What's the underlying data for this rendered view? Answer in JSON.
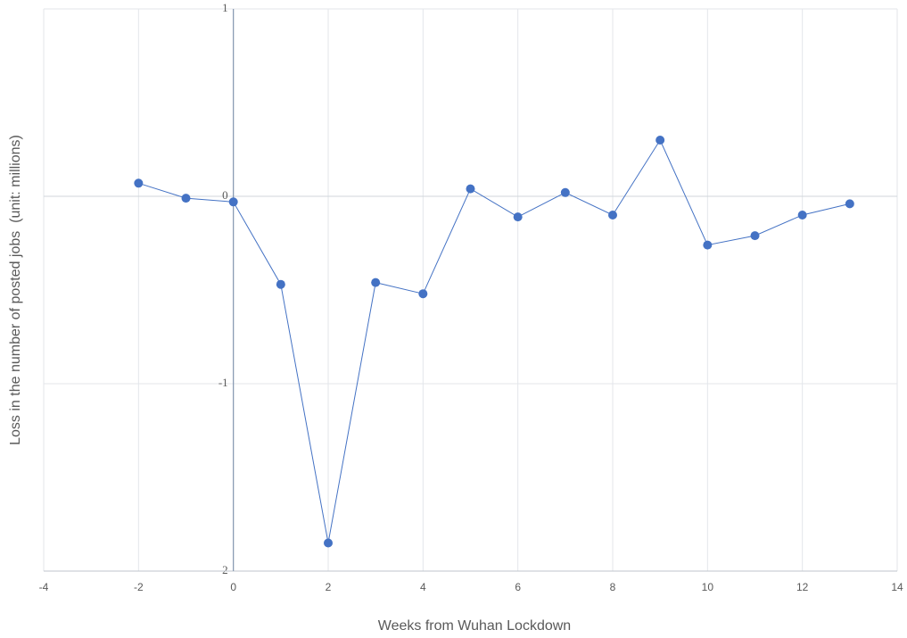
{
  "chart_data": {
    "type": "scatter",
    "x_label": "Weeks from Wuhan Lockdown",
    "y_label": "Loss in the number of posted jobs  (unit: millions)",
    "x": [
      -2,
      -1,
      0,
      1,
      2,
      3,
      4,
      5,
      6,
      7,
      8,
      9,
      10,
      11,
      12,
      13
    ],
    "series": [
      {
        "name": "Loss",
        "color": "#4472c4",
        "values": [
          0.07,
          -0.01,
          -0.03,
          -0.47,
          -1.85,
          -0.46,
          -0.52,
          0.04,
          -0.11,
          0.02,
          -0.1,
          0.3,
          -0.26,
          -0.21,
          -0.1,
          -0.04
        ]
      }
    ],
    "xlim": [
      -4,
      14
    ],
    "xticks": [
      -4,
      -2,
      0,
      2,
      4,
      6,
      8,
      10,
      12,
      14
    ],
    "ylim": [
      -2,
      1
    ],
    "yticks": [
      -2,
      -1,
      0,
      1
    ],
    "grid": true,
    "lines": true
  }
}
